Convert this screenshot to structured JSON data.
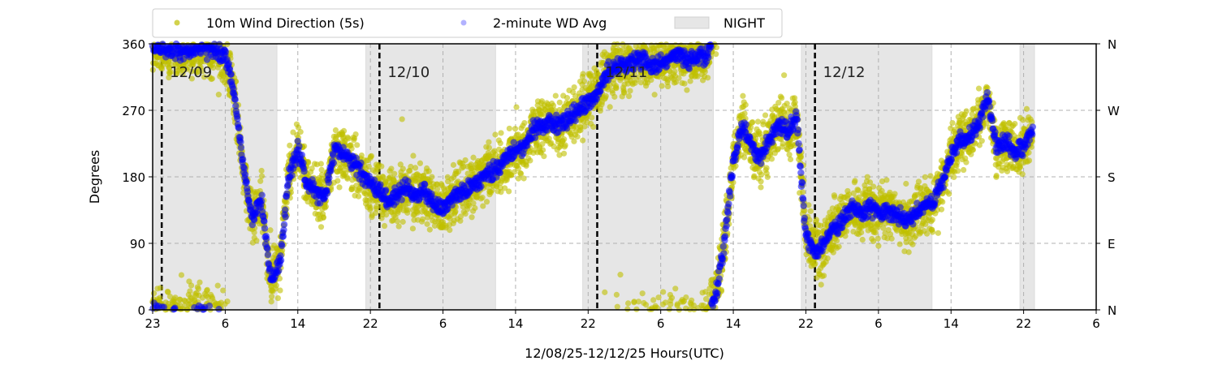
{
  "chart_data": {
    "type": "scatter",
    "xlabel": "12/08/25-12/12/25  Hours(UTC)",
    "ylabel": "Degrees",
    "ylim": [
      0,
      360
    ],
    "xlim_hours": [
      0,
      104
    ],
    "x_tick_labels": [
      "23",
      "6",
      "14",
      "22",
      "6",
      "14",
      "22",
      "6",
      "14",
      "22",
      "6",
      "14",
      "22",
      "6"
    ],
    "x_tick_hours": [
      0,
      8,
      16,
      24,
      32,
      40,
      48,
      56,
      64,
      72,
      80,
      88,
      96,
      104
    ],
    "y_ticks": [
      0,
      90,
      180,
      270,
      360
    ],
    "y_tick_labels": [
      "0",
      "90",
      "180",
      "270",
      "360"
    ],
    "right_tick_labels": [
      "N",
      "E",
      "S",
      "W",
      "N"
    ],
    "grid": true,
    "legend": {
      "placement": "top",
      "entries": [
        {
          "label": "10m Wind Direction (5s)",
          "color": "#bfbf00",
          "kind": "dot"
        },
        {
          "label": "2-minute WD Avg",
          "color": "#0000ff",
          "kind": "dot"
        },
        {
          "label": "NIGHT",
          "color": "#e6e6e6",
          "kind": "patch"
        }
      ]
    },
    "night_periods_hours": [
      [
        0,
        13.7
      ],
      [
        23.5,
        37.8
      ],
      [
        47.4,
        61.8
      ],
      [
        71.5,
        85.9
      ],
      [
        95.6,
        97.2
      ]
    ],
    "midnights": [
      {
        "hour": 1,
        "label": "12/09"
      },
      {
        "hour": 25,
        "label": "12/10"
      },
      {
        "hour": 49,
        "label": "12/11"
      },
      {
        "hour": 73,
        "label": "12/12"
      }
    ],
    "series": [
      {
        "name": "2-minute WD Avg (hourly approx, degrees)",
        "x_hours_start": 0,
        "values": [
          358,
          355,
          352,
          348,
          350,
          355,
          352,
          350,
          345,
          290,
          190,
          120,
          150,
          40,
          60,
          180,
          220,
          170,
          160,
          150,
          215,
          215,
          200,
          185,
          170,
          160,
          150,
          155,
          165,
          155,
          160,
          145,
          135,
          155,
          160,
          165,
          175,
          185,
          190,
          205,
          215,
          220,
          245,
          250,
          255,
          250,
          260,
          270,
          280,
          295,
          320,
          330,
          330,
          335,
          340,
          330,
          335,
          340,
          345,
          338,
          342,
          345,
          15,
          90,
          200,
          250,
          220,
          210,
          230,
          250,
          240,
          260,
          100,
          80,
          90,
          110,
          120,
          140,
          130,
          140,
          130,
          135,
          130,
          120,
          130,
          140,
          145,
          170,
          210,
          230,
          235,
          250,
          290,
          220,
          230,
          215,
          220,
          240
        ]
      }
    ]
  }
}
